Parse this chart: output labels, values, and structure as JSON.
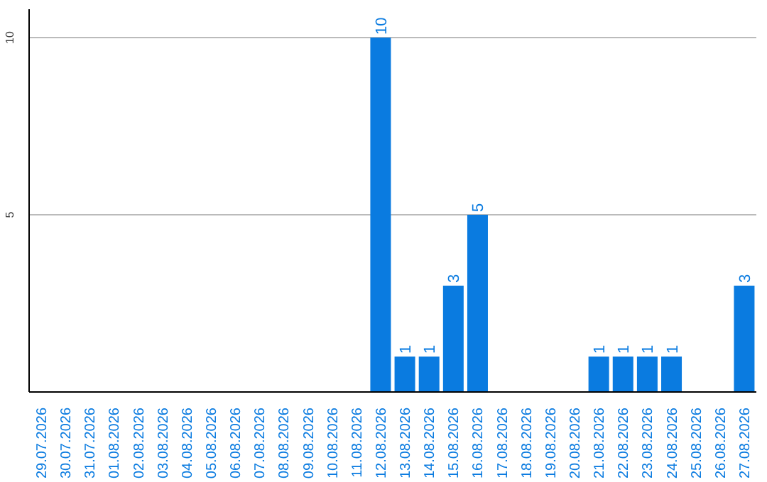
{
  "chart_data": {
    "type": "bar",
    "categories": [
      "29.07.2026",
      "30.07.2026",
      "31.07.2026",
      "01.08.2026",
      "02.08.2026",
      "03.08.2026",
      "04.08.2026",
      "05.08.2026",
      "06.08.2026",
      "07.08.2026",
      "08.08.2026",
      "09.08.2026",
      "10.08.2026",
      "11.08.2026",
      "12.08.2026",
      "13.08.2026",
      "14.08.2026",
      "15.08.2026",
      "16.08.2026",
      "17.08.2026",
      "18.08.2026",
      "19.08.2026",
      "20.08.2026",
      "21.08.2026",
      "22.08.2026",
      "23.08.2026",
      "24.08.2026",
      "25.08.2026",
      "26.08.2026",
      "27.08.2026"
    ],
    "values": [
      0,
      0,
      0,
      0,
      0,
      0,
      0,
      0,
      0,
      0,
      0,
      0,
      0,
      0,
      10,
      1,
      1,
      3,
      5,
      0,
      0,
      0,
      0,
      1,
      1,
      1,
      1,
      0,
      0,
      3
    ],
    "value_labels": [
      null,
      null,
      null,
      null,
      null,
      null,
      null,
      null,
      null,
      null,
      null,
      null,
      null,
      null,
      "10",
      "1",
      "1",
      "3",
      "5",
      null,
      null,
      null,
      null,
      "1",
      "1",
      "1",
      "1",
      null,
      null,
      "3"
    ],
    "color": "#0a7be0",
    "ylim": [
      0,
      10.8
    ],
    "yticks": [
      5,
      10
    ],
    "grid": "y"
  }
}
